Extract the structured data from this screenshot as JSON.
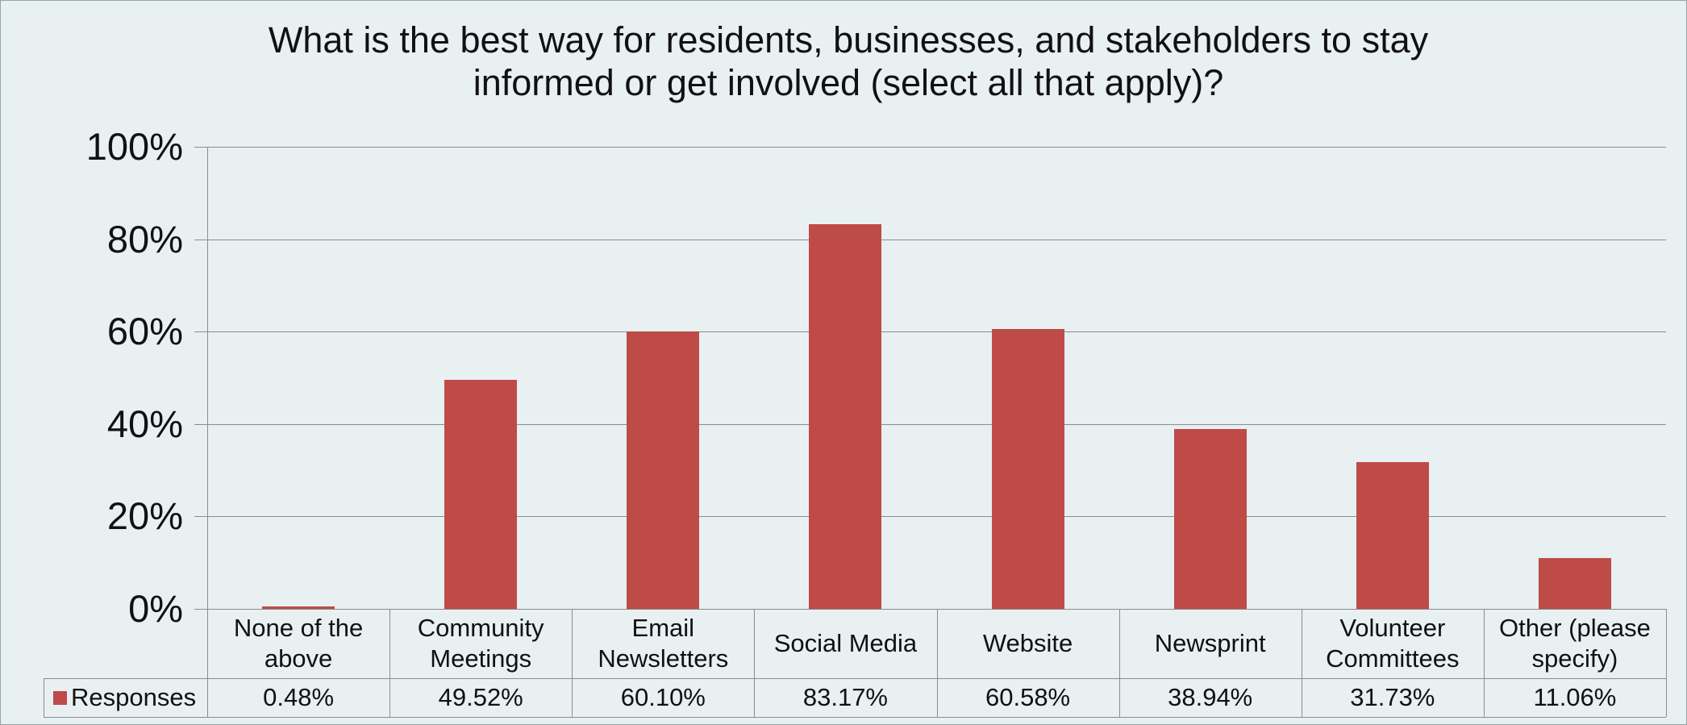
{
  "chart_data": {
    "type": "bar",
    "title": "What is the best way for residents, businesses, and stakeholders to stay informed or get involved (select all that apply)?",
    "categories": [
      "None of the above",
      "Community Meetings",
      "Email Newsletters",
      "Social Media",
      "Website",
      "Newsprint",
      "Volunteer Committees",
      "Other (please specify)"
    ],
    "series": [
      {
        "name": "Responses",
        "color": "#be4b48",
        "values": [
          0.48,
          49.52,
          60.1,
          83.17,
          60.58,
          38.94,
          31.73,
          11.06
        ],
        "value_labels": [
          "0.48%",
          "49.52%",
          "60.10%",
          "83.17%",
          "60.58%",
          "38.94%",
          "31.73%",
          "11.06%"
        ]
      }
    ],
    "ylim": [
      0,
      100
    ],
    "yticks": [
      {
        "value": 0,
        "label": "0%"
      },
      {
        "value": 20,
        "label": "20%"
      },
      {
        "value": 40,
        "label": "40%"
      },
      {
        "value": 60,
        "label": "60%"
      },
      {
        "value": 80,
        "label": "80%"
      },
      {
        "value": 100,
        "label": "100%"
      }
    ],
    "grid": true
  }
}
